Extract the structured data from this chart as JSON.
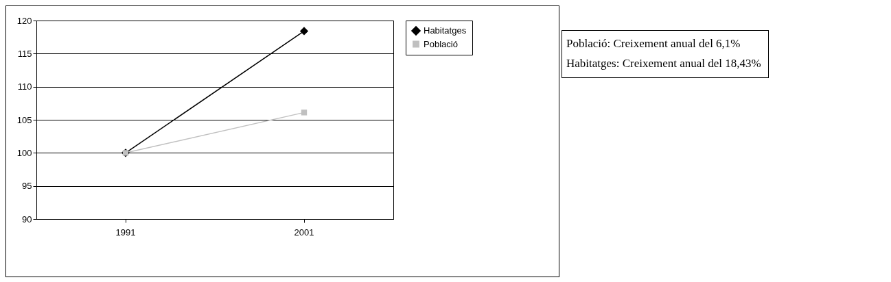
{
  "chart_data": {
    "type": "line",
    "categories": [
      "1991",
      "2001"
    ],
    "series": [
      {
        "name": "Habitatges",
        "color": "#000000",
        "marker": "diamond",
        "values": [
          100,
          118.4
        ]
      },
      {
        "name": "Població",
        "color": "#c0c0c0",
        "marker": "square",
        "values": [
          100,
          106.1
        ]
      }
    ],
    "ylim": [
      90,
      120
    ],
    "yticks": [
      90,
      95,
      100,
      105,
      110,
      115,
      120
    ],
    "grid": "y",
    "legend": "right",
    "annotations": [
      "Població: Creixement anual del 6,1%",
      "Habitatges: Creixement anual del 18,43%"
    ]
  }
}
